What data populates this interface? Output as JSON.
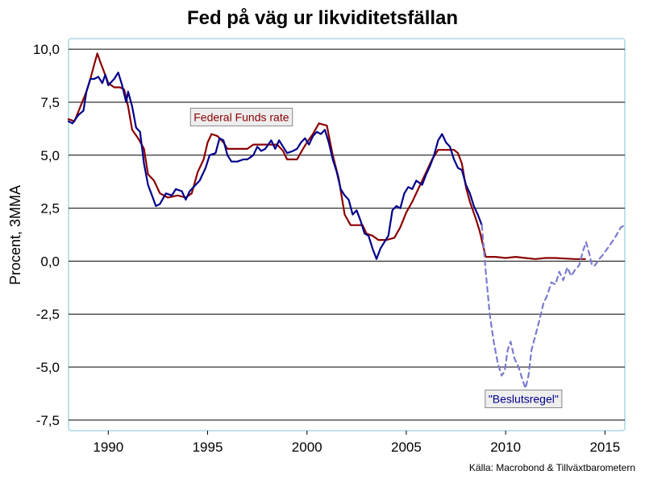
{
  "chart_data": {
    "type": "line",
    "title": "Fed på väg ur likviditetsfällan",
    "ylabel": "Procent, 3MMA",
    "source": "Källa: Macrobond & Tillväxtbarometern",
    "xlim": [
      1988.0,
      2016.0
    ],
    "ylim": [
      -8.0,
      10.5
    ],
    "x_ticks": [
      1990,
      1995,
      2000,
      2005,
      2010,
      2015
    ],
    "x_tick_labels": [
      "1990",
      "1995",
      "2000",
      "2005",
      "2010",
      "2015"
    ],
    "y_ticks": [
      10,
      7.5,
      5,
      2.5,
      0,
      -2.5,
      -5,
      -7.5
    ],
    "y_tick_labels": [
      "10,0",
      "7,5",
      "5,0",
      "2,5",
      "0,0",
      "-2,5",
      "-5,0",
      "-7,5"
    ],
    "grid": "horizontal",
    "colors": {
      "fed_funds": "#8b0000",
      "rule": "#00008b",
      "rule_dashed": "#7b7bd0",
      "annotation_fill": "#eeeeee",
      "plot_border": "#a8d8e0",
      "gridline": "#000000"
    },
    "annotations": [
      {
        "text": "Federal Funds rate",
        "series": "fed_funds",
        "x": 1996.7,
        "y": 6.8
      },
      {
        "text": "\"Beslutsregel\"",
        "series": "rule",
        "x": 2010.9,
        "y": -6.5
      }
    ],
    "series": [
      {
        "key": "fed_funds",
        "style": "solid",
        "points": [
          [
            1988.0,
            6.7
          ],
          [
            1988.3,
            6.6
          ],
          [
            1988.6,
            7.3
          ],
          [
            1988.9,
            8.0
          ],
          [
            1989.1,
            8.6
          ],
          [
            1989.3,
            9.3
          ],
          [
            1989.45,
            9.8
          ],
          [
            1989.6,
            9.4
          ],
          [
            1989.8,
            8.9
          ],
          [
            1990.0,
            8.4
          ],
          [
            1990.3,
            8.2
          ],
          [
            1990.6,
            8.2
          ],
          [
            1990.8,
            8.1
          ],
          [
            1991.0,
            7.3
          ],
          [
            1991.2,
            6.2
          ],
          [
            1991.5,
            5.8
          ],
          [
            1991.8,
            5.3
          ],
          [
            1992.0,
            4.1
          ],
          [
            1992.3,
            3.8
          ],
          [
            1992.6,
            3.2
          ],
          [
            1993.0,
            3.0
          ],
          [
            1993.5,
            3.1
          ],
          [
            1993.9,
            3.0
          ],
          [
            1994.2,
            3.2
          ],
          [
            1994.5,
            4.2
          ],
          [
            1994.8,
            4.8
          ],
          [
            1995.0,
            5.6
          ],
          [
            1995.2,
            6.0
          ],
          [
            1995.5,
            5.9
          ],
          [
            1995.8,
            5.6
          ],
          [
            1996.0,
            5.3
          ],
          [
            1996.5,
            5.3
          ],
          [
            1997.0,
            5.3
          ],
          [
            1997.3,
            5.5
          ],
          [
            1997.7,
            5.5
          ],
          [
            1998.0,
            5.5
          ],
          [
            1998.5,
            5.5
          ],
          [
            1998.8,
            5.2
          ],
          [
            1999.0,
            4.8
          ],
          [
            1999.5,
            4.8
          ],
          [
            1999.8,
            5.3
          ],
          [
            2000.0,
            5.6
          ],
          [
            2000.3,
            6.0
          ],
          [
            2000.6,
            6.5
          ],
          [
            2001.0,
            6.4
          ],
          [
            2001.3,
            5.0
          ],
          [
            2001.6,
            3.9
          ],
          [
            2001.9,
            2.2
          ],
          [
            2002.2,
            1.7
          ],
          [
            2002.5,
            1.7
          ],
          [
            2002.8,
            1.7
          ],
          [
            2003.0,
            1.3
          ],
          [
            2003.3,
            1.2
          ],
          [
            2003.6,
            1.0
          ],
          [
            2004.0,
            1.0
          ],
          [
            2004.4,
            1.1
          ],
          [
            2004.7,
            1.6
          ],
          [
            2005.0,
            2.3
          ],
          [
            2005.3,
            2.8
          ],
          [
            2005.6,
            3.4
          ],
          [
            2006.0,
            4.2
          ],
          [
            2006.3,
            4.8
          ],
          [
            2006.6,
            5.25
          ],
          [
            2007.0,
            5.25
          ],
          [
            2007.4,
            5.25
          ],
          [
            2007.6,
            5.1
          ],
          [
            2007.8,
            4.6
          ],
          [
            2008.0,
            3.5
          ],
          [
            2008.2,
            2.8
          ],
          [
            2008.5,
            2.0
          ],
          [
            2008.7,
            1.4
          ],
          [
            2008.9,
            0.6
          ],
          [
            2009.0,
            0.2
          ],
          [
            2009.5,
            0.2
          ],
          [
            2010.0,
            0.15
          ],
          [
            2010.5,
            0.2
          ],
          [
            2011.0,
            0.15
          ],
          [
            2011.5,
            0.1
          ],
          [
            2012.0,
            0.15
          ],
          [
            2012.5,
            0.15
          ],
          [
            2013.0,
            0.12
          ],
          [
            2013.5,
            0.1
          ],
          [
            2014.0,
            0.1
          ]
        ]
      },
      {
        "key": "rule",
        "style": "solid",
        "points": [
          [
            1988.0,
            6.6
          ],
          [
            1988.2,
            6.5
          ],
          [
            1988.5,
            6.9
          ],
          [
            1988.75,
            7.1
          ],
          [
            1988.9,
            8.0
          ],
          [
            1989.1,
            8.6
          ],
          [
            1989.3,
            8.6
          ],
          [
            1989.5,
            8.7
          ],
          [
            1989.7,
            8.4
          ],
          [
            1989.85,
            8.8
          ],
          [
            1990.0,
            8.3
          ],
          [
            1990.3,
            8.6
          ],
          [
            1990.5,
            8.9
          ],
          [
            1990.7,
            8.3
          ],
          [
            1990.9,
            7.5
          ],
          [
            1991.0,
            8.0
          ],
          [
            1991.2,
            7.3
          ],
          [
            1991.4,
            6.3
          ],
          [
            1991.6,
            6.1
          ],
          [
            1991.8,
            4.6
          ],
          [
            1992.0,
            3.6
          ],
          [
            1992.2,
            3.1
          ],
          [
            1992.4,
            2.6
          ],
          [
            1992.6,
            2.7
          ],
          [
            1992.9,
            3.2
          ],
          [
            1993.2,
            3.1
          ],
          [
            1993.4,
            3.4
          ],
          [
            1993.7,
            3.3
          ],
          [
            1993.9,
            2.9
          ],
          [
            1994.1,
            3.3
          ],
          [
            1994.3,
            3.5
          ],
          [
            1994.6,
            3.8
          ],
          [
            1994.9,
            4.4
          ],
          [
            1995.1,
            5.0
          ],
          [
            1995.4,
            5.1
          ],
          [
            1995.6,
            5.8
          ],
          [
            1995.8,
            5.7
          ],
          [
            1996.0,
            5.0
          ],
          [
            1996.2,
            4.7
          ],
          [
            1996.5,
            4.7
          ],
          [
            1996.8,
            4.8
          ],
          [
            1997.0,
            4.8
          ],
          [
            1997.3,
            5.0
          ],
          [
            1997.5,
            5.4
          ],
          [
            1997.7,
            5.2
          ],
          [
            1997.9,
            5.3
          ],
          [
            1998.2,
            5.7
          ],
          [
            1998.4,
            5.3
          ],
          [
            1998.6,
            5.7
          ],
          [
            1998.8,
            5.4
          ],
          [
            1999.0,
            5.1
          ],
          [
            1999.3,
            5.2
          ],
          [
            1999.5,
            5.3
          ],
          [
            1999.7,
            5.6
          ],
          [
            1999.9,
            5.8
          ],
          [
            2000.1,
            5.5
          ],
          [
            2000.3,
            5.9
          ],
          [
            2000.5,
            6.1
          ],
          [
            2000.7,
            6.0
          ],
          [
            2000.9,
            6.2
          ],
          [
            2001.1,
            5.6
          ],
          [
            2001.3,
            4.8
          ],
          [
            2001.5,
            4.2
          ],
          [
            2001.7,
            3.4
          ],
          [
            2001.9,
            3.1
          ],
          [
            2002.1,
            2.9
          ],
          [
            2002.3,
            2.2
          ],
          [
            2002.5,
            2.4
          ],
          [
            2002.7,
            1.9
          ],
          [
            2002.9,
            1.3
          ],
          [
            2003.1,
            1.2
          ],
          [
            2003.3,
            0.6
          ],
          [
            2003.5,
            0.1
          ],
          [
            2003.7,
            0.6
          ],
          [
            2003.9,
            0.9
          ],
          [
            2004.1,
            1.2
          ],
          [
            2004.3,
            2.4
          ],
          [
            2004.5,
            2.6
          ],
          [
            2004.7,
            2.5
          ],
          [
            2004.9,
            3.2
          ],
          [
            2005.1,
            3.5
          ],
          [
            2005.3,
            3.4
          ],
          [
            2005.5,
            3.8
          ],
          [
            2005.8,
            3.6
          ],
          [
            2006.0,
            4.1
          ],
          [
            2006.2,
            4.5
          ],
          [
            2006.4,
            5.0
          ],
          [
            2006.6,
            5.7
          ],
          [
            2006.8,
            6.0
          ],
          [
            2007.0,
            5.6
          ],
          [
            2007.2,
            5.4
          ],
          [
            2007.4,
            4.8
          ],
          [
            2007.6,
            4.4
          ],
          [
            2007.8,
            4.3
          ],
          [
            2008.0,
            3.6
          ],
          [
            2008.2,
            3.2
          ],
          [
            2008.4,
            2.6
          ],
          [
            2008.6,
            2.2
          ],
          [
            2008.8,
            1.7
          ]
        ]
      },
      {
        "key": "rule_dashed",
        "style": "dashed",
        "points": [
          [
            2008.8,
            1.7
          ],
          [
            2009.0,
            -0.5
          ],
          [
            2009.2,
            -2.5
          ],
          [
            2009.4,
            -3.8
          ],
          [
            2009.6,
            -4.8
          ],
          [
            2009.8,
            -5.4
          ],
          [
            2009.95,
            -5.2
          ],
          [
            2010.1,
            -4.2
          ],
          [
            2010.25,
            -3.8
          ],
          [
            2010.45,
            -4.6
          ],
          [
            2010.65,
            -5.0
          ],
          [
            2010.85,
            -5.6
          ],
          [
            2011.0,
            -6.0
          ],
          [
            2011.15,
            -5.4
          ],
          [
            2011.3,
            -4.2
          ],
          [
            2011.5,
            -3.5
          ],
          [
            2011.7,
            -2.8
          ],
          [
            2011.9,
            -2.0
          ],
          [
            2012.1,
            -1.6
          ],
          [
            2012.3,
            -1.0
          ],
          [
            2012.5,
            -1.1
          ],
          [
            2012.7,
            -0.5
          ],
          [
            2012.9,
            -0.9
          ],
          [
            2013.1,
            -0.3
          ],
          [
            2013.3,
            -0.7
          ],
          [
            2013.5,
            -0.4
          ],
          [
            2013.7,
            -0.2
          ],
          [
            2013.9,
            0.5
          ],
          [
            2014.05,
            0.9
          ],
          [
            2014.2,
            0.4
          ],
          [
            2014.35,
            -0.2
          ],
          [
            2014.5,
            -0.2
          ],
          [
            2014.7,
            0.1
          ],
          [
            2014.9,
            0.3
          ],
          [
            2015.2,
            0.7
          ],
          [
            2015.5,
            1.1
          ],
          [
            2015.8,
            1.6
          ],
          [
            2016.0,
            1.7
          ]
        ]
      }
    ]
  }
}
